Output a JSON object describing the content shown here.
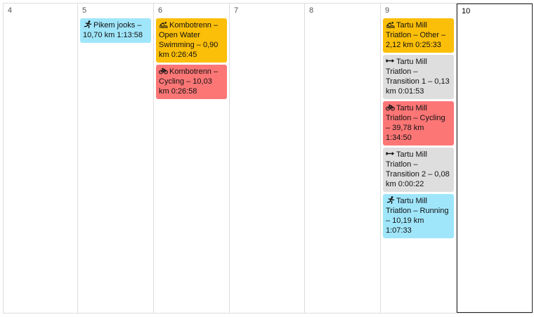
{
  "days": [
    {
      "number": "4",
      "events": []
    },
    {
      "number": "5",
      "events": [
        {
          "type": "running",
          "icon": "running-icon",
          "text": "Pikem jooks – 10,70 km 1:13:58"
        }
      ]
    },
    {
      "number": "6",
      "events": [
        {
          "type": "swimming",
          "icon": "swimming-icon",
          "text": "Kombotrenn – Open Water Swimming – 0,90 km 0:26:45"
        },
        {
          "type": "cycling",
          "icon": "cycling-icon",
          "text": "Kombotrenn – Cycling – 10,03 km 0:26:58"
        }
      ]
    },
    {
      "number": "7",
      "events": []
    },
    {
      "number": "8",
      "events": []
    },
    {
      "number": "9",
      "events": [
        {
          "type": "swimming",
          "icon": "swimming-icon",
          "text": "Tartu Mill Triatlon – Other – 2,12 km 0:25:33"
        },
        {
          "type": "transition",
          "icon": "transition-icon",
          "text": "Tartu Mill Triatlon – Transition 1 – 0,13 km 0:01:53"
        },
        {
          "type": "cycling",
          "icon": "cycling-icon",
          "text": "Tartu Mill Triatlon – Cycling – 39,78 km 1:34:50"
        },
        {
          "type": "transition",
          "icon": "transition-icon",
          "text": "Tartu Mill Triatlon – Transition 2 – 0,08 km 0:00:22"
        },
        {
          "type": "running",
          "icon": "running-icon",
          "text": "Tartu Mill Triatlon – Running – 10,19 km 1:07:33"
        }
      ]
    },
    {
      "number": "10",
      "today": true,
      "events": []
    }
  ],
  "colors": {
    "running": "#a0e6fb",
    "swimming": "#fbbf0a",
    "cycling": "#fc7676",
    "transition": "#dedede",
    "today_border": "#222222"
  }
}
